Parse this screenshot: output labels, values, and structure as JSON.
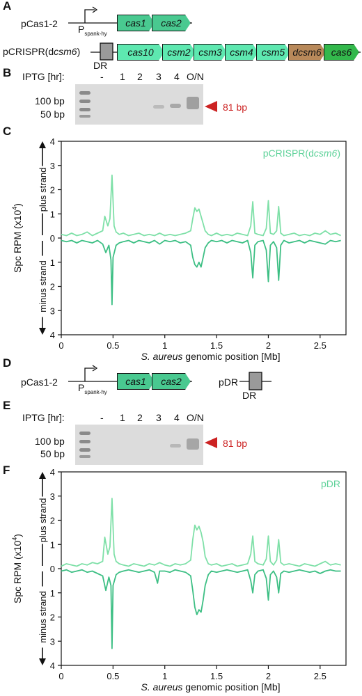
{
  "colors": {
    "light_green": "#7fe0a8",
    "dark_green": "#3dbf84",
    "gene_green": "#49c990",
    "gene_light": "#5ee8b0",
    "dcsm6_brown": "#b8895a",
    "cas6_green": "#33b84c",
    "dr_gray": "#9a9a9a",
    "marker_red": "#cc2222",
    "pcrispr_label_color": "#5fd29a"
  },
  "panels": {
    "A": {
      "letter": "A",
      "plasmid1_label": "pCas1-2",
      "promoter_p": "P",
      "promoter_sub": "spank-hy",
      "plasmid1_genes": [
        "cas1",
        "cas2"
      ],
      "plasmid2_label_pre": "pCRISPR(d",
      "plasmid2_label_ital": "csm6",
      "plasmid2_label_post": ")",
      "dr_label": "DR",
      "plasmid2_genes": [
        "cas10",
        "csm2",
        "csm3",
        "csm4",
        "csm5",
        "dcsm6",
        "cas6"
      ]
    },
    "B": {
      "letter": "B",
      "iptg_label": "IPTG [hr]:",
      "lanes": [
        "-",
        "1",
        "2",
        "3",
        "4",
        "O/N"
      ],
      "marker_100": "100 bp",
      "marker_50": "50 bp",
      "band_label": "81 bp"
    },
    "C": {
      "letter": "C"
    },
    "D": {
      "letter": "D",
      "plasmid1_label": "pCas1-2",
      "promoter_p": "P",
      "promoter_sub": "spank-hy",
      "plasmid1_genes": [
        "cas1",
        "cas2"
      ],
      "plasmid3_label": "pDR",
      "dr_label": "DR"
    },
    "E": {
      "letter": "E",
      "iptg_label": "IPTG [hr]:",
      "lanes": [
        "-",
        "1",
        "2",
        "3",
        "4",
        "O/N"
      ],
      "marker_100": "100 bp",
      "marker_50": "50 bp",
      "band_label": "81 bp"
    },
    "F": {
      "letter": "F"
    }
  },
  "chart_data": [
    {
      "type": "line",
      "panel": "C",
      "legend": "pCRISPR(dcsm6)",
      "legend_pre": "pCRISPR(d",
      "legend_ital": "csm6",
      "legend_post": ")",
      "legend_placement": "top-right",
      "ylabel": "Spc RPM (x10",
      "ylabel_sup": "4",
      "ylabel_post": ")",
      "plus_strand_label": "plus strand",
      "minus_strand_label": "minus strand",
      "xlabel_ital": "S. aureus",
      "xlabel_rest": " genomic position [Mb]",
      "xlim": [
        0,
        2.75
      ],
      "ylim": [
        -4,
        4
      ],
      "xticks": [
        0,
        0.5,
        1,
        1.5,
        2,
        2.5
      ],
      "xtick_labels": [
        "0",
        "0.5",
        "1",
        "1.5",
        "2",
        "2.5"
      ],
      "yticks": [
        4,
        3,
        2,
        1,
        0,
        -1,
        -2,
        -3,
        -4
      ],
      "ytick_labels": [
        "4",
        "3",
        "2",
        "1",
        "0",
        "1",
        "2",
        "3",
        "4"
      ],
      "series": [
        {
          "strand": "plus",
          "color": "#7fe0a8",
          "x": [
            0.0,
            0.05,
            0.1,
            0.15,
            0.2,
            0.25,
            0.3,
            0.35,
            0.4,
            0.42,
            0.45,
            0.47,
            0.49,
            0.51,
            0.53,
            0.56,
            0.6,
            0.65,
            0.7,
            0.75,
            0.8,
            0.85,
            0.9,
            0.95,
            1.0,
            1.05,
            1.1,
            1.15,
            1.2,
            1.25,
            1.27,
            1.29,
            1.31,
            1.33,
            1.35,
            1.37,
            1.39,
            1.42,
            1.45,
            1.5,
            1.55,
            1.6,
            1.65,
            1.7,
            1.75,
            1.8,
            1.83,
            1.85,
            1.87,
            1.9,
            1.95,
            1.98,
            2.0,
            2.02,
            2.05,
            2.08,
            2.1,
            2.12,
            2.15,
            2.2,
            2.25,
            2.3,
            2.35,
            2.4,
            2.45,
            2.5,
            2.55,
            2.6,
            2.65,
            2.7
          ],
          "y": [
            0.15,
            0.1,
            0.2,
            0.1,
            0.15,
            0.25,
            0.1,
            0.2,
            0.3,
            0.9,
            0.5,
            0.8,
            2.6,
            0.5,
            0.25,
            0.15,
            0.2,
            0.1,
            0.15,
            0.2,
            0.1,
            0.15,
            0.1,
            0.2,
            0.1,
            0.15,
            0.1,
            0.15,
            0.2,
            0.3,
            0.8,
            1.25,
            1.1,
            1.2,
            0.9,
            0.6,
            0.3,
            0.15,
            0.1,
            0.2,
            0.1,
            0.15,
            0.1,
            0.2,
            0.15,
            0.1,
            0.5,
            1.5,
            0.2,
            0.15,
            0.1,
            0.4,
            1.55,
            0.2,
            0.15,
            0.3,
            1.3,
            0.2,
            0.1,
            0.15,
            0.2,
            0.1,
            0.15,
            0.1,
            0.2,
            0.15,
            0.3,
            0.15,
            0.2,
            0.1
          ]
        },
        {
          "strand": "minus",
          "color": "#3dbf84",
          "x": [
            0.0,
            0.05,
            0.1,
            0.15,
            0.2,
            0.25,
            0.3,
            0.35,
            0.4,
            0.43,
            0.46,
            0.48,
            0.49,
            0.5,
            0.53,
            0.56,
            0.6,
            0.65,
            0.7,
            0.75,
            0.8,
            0.85,
            0.9,
            0.95,
            1.0,
            1.05,
            1.1,
            1.15,
            1.2,
            1.25,
            1.27,
            1.29,
            1.31,
            1.33,
            1.35,
            1.37,
            1.39,
            1.42,
            1.45,
            1.5,
            1.55,
            1.6,
            1.65,
            1.7,
            1.75,
            1.8,
            1.83,
            1.85,
            1.87,
            1.9,
            1.95,
            1.98,
            2.0,
            2.02,
            2.05,
            2.08,
            2.1,
            2.12,
            2.15,
            2.2,
            2.25,
            2.3,
            2.35,
            2.4,
            2.45,
            2.5,
            2.55,
            2.6,
            2.65,
            2.7
          ],
          "y": [
            -0.1,
            -0.15,
            -0.1,
            -0.2,
            -0.1,
            -0.15,
            -0.2,
            -0.1,
            -0.25,
            -0.6,
            -0.3,
            -0.9,
            -2.75,
            -0.8,
            -0.3,
            -0.2,
            -0.15,
            -0.1,
            -0.2,
            -0.1,
            -0.15,
            -0.2,
            -0.1,
            -0.25,
            -0.1,
            -0.15,
            -0.1,
            -0.2,
            -0.15,
            -0.3,
            -0.8,
            -1.1,
            -1.2,
            -1.0,
            -1.2,
            -0.8,
            -0.4,
            -0.2,
            -0.1,
            -0.15,
            -0.1,
            -0.2,
            -0.1,
            -0.15,
            -0.2,
            -0.1,
            -0.6,
            -1.65,
            -0.3,
            -0.15,
            -0.1,
            -0.5,
            -1.8,
            -0.3,
            -0.15,
            -0.4,
            -1.75,
            -0.3,
            -0.1,
            -0.2,
            -0.15,
            -0.1,
            -0.2,
            -0.1,
            -0.15,
            -0.2,
            -0.25,
            -0.1,
            -0.15,
            -0.1
          ]
        }
      ]
    },
    {
      "type": "line",
      "panel": "F",
      "legend": "pDR",
      "legend_placement": "top-right",
      "ylabel": "Spc RPM (x10",
      "ylabel_sup": "4",
      "ylabel_post": ")",
      "plus_strand_label": "plus strand",
      "minus_strand_label": "minus strand",
      "xlabel_ital": "S. aureus",
      "xlabel_rest": " genomic position [Mb]",
      "xlim": [
        0,
        2.75
      ],
      "ylim": [
        -4,
        4
      ],
      "xticks": [
        0,
        0.5,
        1,
        1.5,
        2,
        2.5
      ],
      "xtick_labels": [
        "0",
        "0.5",
        "1",
        "1.5",
        "2",
        "2.5"
      ],
      "yticks": [
        4,
        3,
        2,
        1,
        0,
        -1,
        -2,
        -3,
        -4
      ],
      "ytick_labels": [
        "4",
        "3",
        "2",
        "1",
        "0",
        "1",
        "2",
        "3",
        "4"
      ],
      "series": [
        {
          "strand": "plus",
          "color": "#7fe0a8",
          "x": [
            0.0,
            0.05,
            0.1,
            0.15,
            0.2,
            0.25,
            0.3,
            0.35,
            0.4,
            0.42,
            0.45,
            0.47,
            0.49,
            0.51,
            0.53,
            0.56,
            0.6,
            0.65,
            0.7,
            0.75,
            0.8,
            0.85,
            0.9,
            0.95,
            1.0,
            1.05,
            1.1,
            1.15,
            1.2,
            1.25,
            1.27,
            1.29,
            1.31,
            1.33,
            1.35,
            1.37,
            1.39,
            1.42,
            1.45,
            1.5,
            1.55,
            1.6,
            1.65,
            1.7,
            1.75,
            1.8,
            1.83,
            1.85,
            1.87,
            1.9,
            1.95,
            1.98,
            2.0,
            2.02,
            2.05,
            2.08,
            2.1,
            2.12,
            2.15,
            2.2,
            2.25,
            2.3,
            2.35,
            2.4,
            2.45,
            2.5,
            2.55,
            2.6,
            2.65,
            2.7
          ],
          "y": [
            0.1,
            0.2,
            0.15,
            0.1,
            0.2,
            0.15,
            0.25,
            0.2,
            0.3,
            1.3,
            0.6,
            0.9,
            2.9,
            0.6,
            0.3,
            0.2,
            0.15,
            0.1,
            0.2,
            0.15,
            0.1,
            0.2,
            0.15,
            0.25,
            0.15,
            0.1,
            0.2,
            0.15,
            0.2,
            0.35,
            1.2,
            1.8,
            1.6,
            1.75,
            1.5,
            1.1,
            0.5,
            0.2,
            0.15,
            0.2,
            0.1,
            0.15,
            0.2,
            0.1,
            0.15,
            0.2,
            0.6,
            1.35,
            0.3,
            0.2,
            0.15,
            0.4,
            1.35,
            0.3,
            0.15,
            0.35,
            1.2,
            0.25,
            0.15,
            0.2,
            0.15,
            0.1,
            0.2,
            0.15,
            0.1,
            0.2,
            0.3,
            0.15,
            0.2,
            0.15
          ]
        },
        {
          "strand": "minus",
          "color": "#3dbf84",
          "x": [
            0.0,
            0.05,
            0.1,
            0.15,
            0.2,
            0.25,
            0.3,
            0.35,
            0.4,
            0.43,
            0.46,
            0.48,
            0.49,
            0.5,
            0.53,
            0.56,
            0.6,
            0.65,
            0.7,
            0.75,
            0.8,
            0.85,
            0.9,
            0.93,
            0.95,
            1.0,
            1.05,
            1.1,
            1.15,
            1.2,
            1.25,
            1.27,
            1.29,
            1.31,
            1.33,
            1.35,
            1.37,
            1.39,
            1.42,
            1.45,
            1.5,
            1.55,
            1.6,
            1.65,
            1.7,
            1.75,
            1.8,
            1.83,
            1.85,
            1.87,
            1.9,
            1.95,
            1.98,
            2.0,
            2.02,
            2.05,
            2.08,
            2.1,
            2.12,
            2.15,
            2.2,
            2.25,
            2.3,
            2.35,
            2.4,
            2.45,
            2.5,
            2.55,
            2.6,
            2.65,
            2.7
          ],
          "y": [
            -0.1,
            -0.05,
            -0.15,
            -0.1,
            -0.05,
            -0.15,
            -0.1,
            -0.2,
            -0.3,
            -0.9,
            -0.35,
            -0.7,
            -3.3,
            -0.7,
            -0.25,
            -0.15,
            -0.1,
            -0.05,
            -0.1,
            -0.15,
            -0.1,
            -0.05,
            -0.15,
            -0.6,
            -0.1,
            -0.1,
            -0.15,
            -0.05,
            -0.1,
            -0.15,
            -0.3,
            -0.9,
            -1.6,
            -1.9,
            -1.7,
            -1.8,
            -1.3,
            -0.7,
            -0.25,
            -0.1,
            -0.15,
            -0.1,
            -0.05,
            -0.1,
            -0.15,
            -0.1,
            -0.05,
            -0.5,
            -1.0,
            -0.25,
            -0.1,
            -0.05,
            -0.4,
            -1.3,
            -0.25,
            -0.1,
            -0.35,
            -1.0,
            -0.2,
            -0.1,
            -0.15,
            -0.1,
            -0.05,
            -0.1,
            -0.15,
            -0.1,
            -0.2,
            -0.1,
            -0.05,
            -0.1,
            -0.1
          ]
        }
      ]
    }
  ]
}
